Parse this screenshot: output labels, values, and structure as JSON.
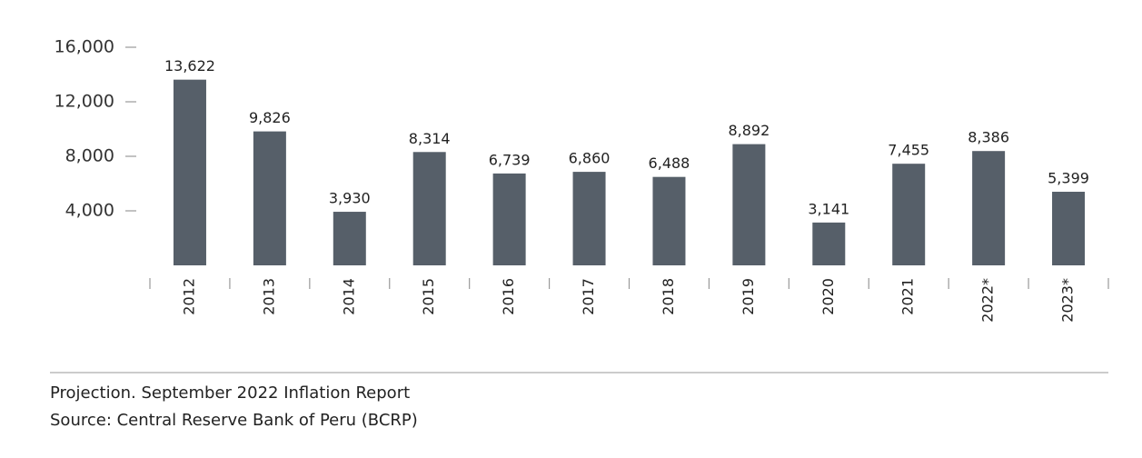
{
  "chart_data": {
    "type": "bar",
    "categories": [
      "2012",
      "2013",
      "2014",
      "2015",
      "2016",
      "2017",
      "2018",
      "2019",
      "2020",
      "2021",
      "2022*",
      "2023*"
    ],
    "values": [
      13622,
      9826,
      3930,
      8314,
      6739,
      6860,
      6488,
      8892,
      3141,
      7455,
      8386,
      5399
    ],
    "value_labels": [
      "13,622",
      "9,826",
      "3,930",
      "8,314",
      "6,739",
      "6,860",
      "6,488",
      "8,892",
      "3,141",
      "7,455",
      "8,386",
      "5,399"
    ],
    "color": "#565f69",
    "ylim": [
      0,
      16000
    ],
    "yticks": [
      {
        "value": 4000,
        "label": "4,000"
      },
      {
        "value": 8000,
        "label": "8,000"
      },
      {
        "value": 12000,
        "label": "12,000"
      },
      {
        "value": 16000,
        "label": "16,000"
      }
    ],
    "grid": false,
    "notes": [
      "Projection. September 2022 Inflation Report",
      "Source: Central Reserve Bank of Peru (BCRP)"
    ]
  }
}
